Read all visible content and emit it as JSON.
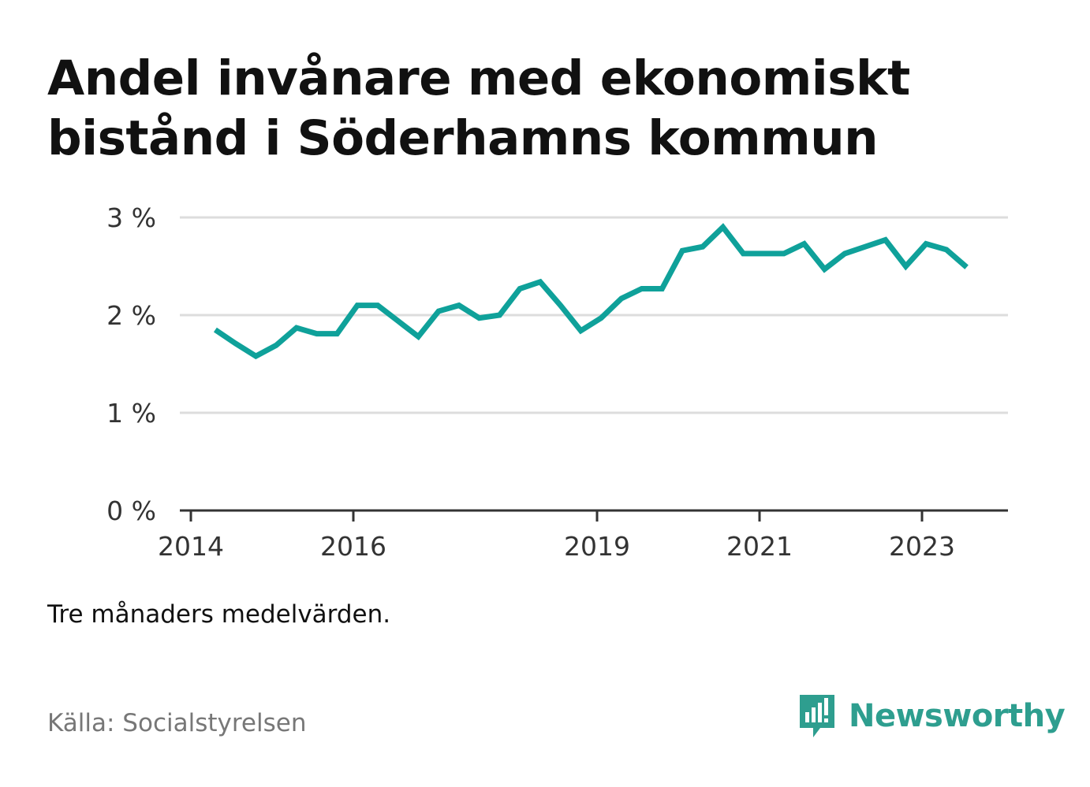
{
  "title": "Andel invånare med ekonomiskt bistånd i Söderhamns kommun",
  "note": "Tre månaders medelvärden.",
  "source": "Källa: Socialstyrelsen",
  "brand": {
    "name": "Newsworthy",
    "icon": "newsworthy-logo-icon",
    "color": "#2e9e8f"
  },
  "colors": {
    "line": "#0fa19a",
    "grid": "#dddddd",
    "axis": "#333333"
  },
  "chart_data": {
    "type": "line",
    "title": "Andel invånare med ekonomiskt bistånd i Söderhamns kommun",
    "xlabel": "",
    "ylabel": "",
    "ylim": [
      0,
      3
    ],
    "xlim": [
      2014.0,
      2024.25
    ],
    "y_ticks": [
      {
        "value": 0,
        "label": "0 %"
      },
      {
        "value": 1,
        "label": "1 %"
      },
      {
        "value": 2,
        "label": "2 %"
      },
      {
        "value": 3,
        "label": "3 %"
      }
    ],
    "x_ticks": [
      {
        "value": 2014,
        "label": "2014"
      },
      {
        "value": 2016,
        "label": "2016"
      },
      {
        "value": 2019,
        "label": "2019"
      },
      {
        "value": 2021,
        "label": "2021"
      },
      {
        "value": 2023,
        "label": "2023"
      }
    ],
    "grid": true,
    "legend": "none",
    "series": [
      {
        "x": [
          2014.3,
          2014.55,
          2014.8,
          2015.05,
          2015.3,
          2015.55,
          2015.8,
          2016.05,
          2016.3,
          2016.55,
          2016.8,
          2017.05,
          2017.3,
          2017.55,
          2017.8,
          2018.05,
          2018.3,
          2018.55,
          2018.8,
          2019.05,
          2019.3,
          2019.55,
          2019.8,
          2020.05,
          2020.3,
          2020.55,
          2020.8,
          2021.05,
          2021.3,
          2021.55,
          2021.8,
          2022.05,
          2022.3,
          2022.55,
          2022.8,
          2023.05,
          2023.3,
          2023.55
        ],
        "values": [
          1.85,
          1.71,
          1.58,
          1.69,
          1.87,
          1.81,
          1.81,
          2.1,
          2.1,
          1.94,
          1.78,
          2.04,
          2.1,
          1.97,
          2.0,
          2.27,
          2.34,
          2.1,
          1.84,
          1.97,
          2.17,
          2.27,
          2.27,
          2.66,
          2.7,
          2.9,
          2.63,
          2.63,
          2.63,
          2.73,
          2.47,
          2.63,
          2.7,
          2.77,
          2.5,
          2.73,
          2.67,
          2.49
        ]
      }
    ]
  }
}
